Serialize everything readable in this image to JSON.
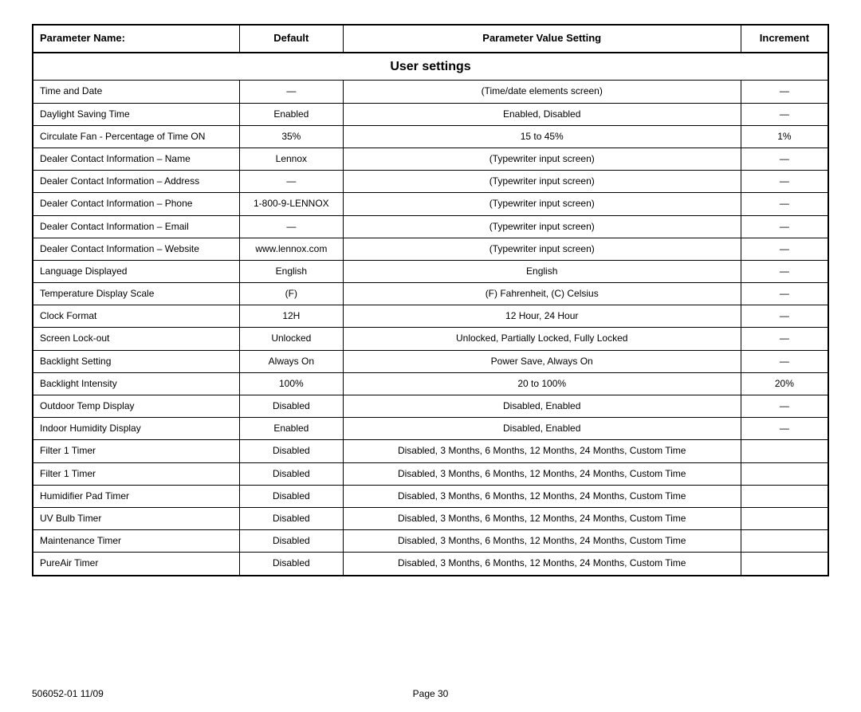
{
  "columns": [
    "Parameter Name:",
    "Default",
    "Parameter Value Setting",
    "Increment"
  ],
  "section_title": "User settings",
  "rows": [
    {
      "name": "Time and Date",
      "default": "—",
      "value": "(Time/date elements screen)",
      "increment": "—"
    },
    {
      "name": "Daylight Saving Time",
      "default": "Enabled",
      "value": "Enabled, Disabled",
      "increment": "—"
    },
    {
      "name": "Circulate Fan - Percentage of Time ON",
      "default": "35%",
      "value": "15 to 45%",
      "increment": "1%"
    },
    {
      "name": "Dealer Contact Information – Name",
      "default": "Lennox",
      "value": "(Typewriter input screen)",
      "increment": "—"
    },
    {
      "name": "Dealer Contact Information – Address",
      "default": "—",
      "value": "(Typewriter input screen)",
      "increment": "—"
    },
    {
      "name": "Dealer Contact Information – Phone",
      "default": "1-800-9-LENNOX",
      "value": "(Typewriter input screen)",
      "increment": "—"
    },
    {
      "name": "Dealer Contact Information – Email",
      "default": "—",
      "value": "(Typewriter input screen)",
      "increment": "—"
    },
    {
      "name": "Dealer Contact Information – Website",
      "default": "www.lennox.com",
      "value": "(Typewriter input screen)",
      "increment": "—"
    },
    {
      "name": "Language Displayed",
      "default": "English",
      "value": "English",
      "increment": "—"
    },
    {
      "name": "Temperature Display Scale",
      "default": "(F)",
      "value": "(F) Fahrenheit, (C) Celsius",
      "increment": "—"
    },
    {
      "name": "Clock Format",
      "default": "12H",
      "value": "12 Hour, 24 Hour",
      "increment": "—"
    },
    {
      "name": "Screen Lock-out",
      "default": "Unlocked",
      "value": "Unlocked, Partially Locked, Fully Locked",
      "increment": "—"
    },
    {
      "name": "Backlight Setting",
      "default": "Always On",
      "value": "Power Save, Always On",
      "increment": "—"
    },
    {
      "name": "Backlight Intensity",
      "default": "100%",
      "value": "20 to 100%",
      "increment": "20%"
    },
    {
      "name": "Outdoor Temp Display",
      "default": "Disabled",
      "value": "Disabled, Enabled",
      "increment": "—"
    },
    {
      "name": "Indoor Humidity Display",
      "default": "Enabled",
      "value": "Disabled, Enabled",
      "increment": "—"
    },
    {
      "name": "Filter 1 Timer",
      "default": "Disabled",
      "value": "Disabled, 3 Months, 6 Months, 12 Months, 24 Months, Custom Time",
      "increment": ""
    },
    {
      "name": "Filter 1 Timer",
      "default": "Disabled",
      "value": "Disabled, 3 Months, 6 Months, 12 Months, 24 Months, Custom Time",
      "increment": ""
    },
    {
      "name": "Humidifier Pad Timer",
      "default": "Disabled",
      "value": "Disabled, 3 Months, 6 Months, 12 Months, 24 Months, Custom Time",
      "increment": ""
    },
    {
      "name": "UV Bulb Timer",
      "default": "Disabled",
      "value": "Disabled, 3 Months, 6 Months, 12 Months, 24 Months, Custom Time",
      "increment": ""
    },
    {
      "name": "Maintenance Timer",
      "default": "Disabled",
      "value": "Disabled, 3 Months, 6 Months, 12 Months, 24 Months, Custom Time",
      "increment": ""
    },
    {
      "name": "PureAir Timer",
      "default": "Disabled",
      "value": "Disabled, 3 Months, 6 Months, 12 Months, 24 Months, Custom Time",
      "increment": ""
    }
  ],
  "footer": {
    "doc_id": "506052-01 11/09",
    "page": "Page 30"
  }
}
